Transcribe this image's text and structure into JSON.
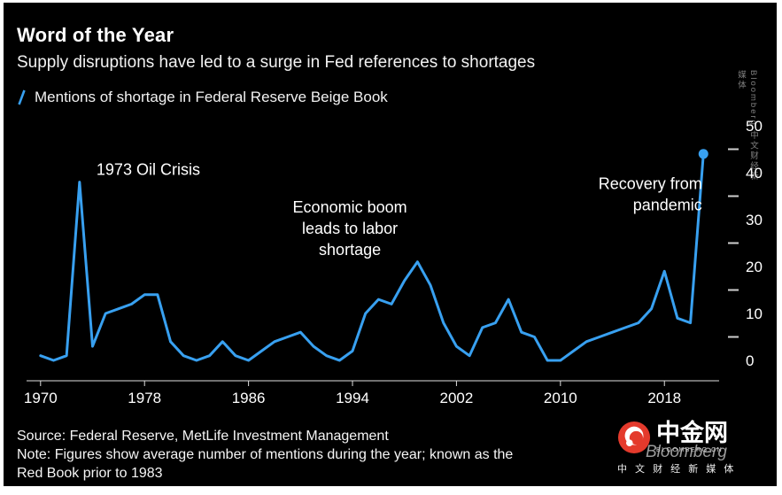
{
  "page": {
    "background": "#000000",
    "accent": "#38A0F0"
  },
  "header": {
    "title": "Word of the Year",
    "subtitle": "Supply disruptions have led to a surge in Fed references to shortages"
  },
  "legend": {
    "label": "Mentions of shortage in Federal Reserve Beige Book",
    "mark_color": "#38A0F0"
  },
  "chart_data": {
    "type": "line",
    "title": "Word of the Year",
    "line_color": "#38A0F0",
    "axis_side": "right",
    "grid": false,
    "legend_position": "top-left",
    "xlim": [
      1969.4,
      2021.8
    ],
    "ylim": [
      0,
      50
    ],
    "xticks": [
      1970,
      1978,
      1986,
      1994,
      2002,
      2010,
      2018
    ],
    "yticks": [
      0,
      10,
      20,
      30,
      40,
      50
    ],
    "yticks_minor": [
      5,
      15,
      25,
      35,
      45
    ],
    "endpoint_marker": true,
    "series": [
      {
        "name": "Mentions of shortage in Federal Reserve Beige Book",
        "x": [
          1970,
          1971,
          1972,
          1973,
          1974,
          1975,
          1976,
          1977,
          1978,
          1979,
          1980,
          1981,
          1982,
          1983,
          1984,
          1985,
          1986,
          1987,
          1988,
          1989,
          1990,
          1991,
          1992,
          1993,
          1994,
          1995,
          1996,
          1997,
          1998,
          1999,
          2000,
          2001,
          2002,
          2003,
          2004,
          2005,
          2006,
          2007,
          2008,
          2009,
          2010,
          2011,
          2012,
          2013,
          2014,
          2015,
          2016,
          2017,
          2018,
          2019,
          2020,
          2021
        ],
        "values": [
          1,
          0,
          1,
          38,
          3,
          10,
          11,
          12,
          14,
          14,
          4,
          1,
          0,
          1,
          4,
          1,
          0,
          2,
          4,
          5,
          6,
          3,
          1,
          0,
          2,
          10,
          13,
          12,
          17,
          21,
          16,
          8,
          3,
          1,
          7,
          8,
          13,
          6,
          5,
          0,
          0,
          2,
          4,
          5,
          6,
          7,
          8,
          11,
          19,
          9,
          8,
          44
        ]
      }
    ],
    "annotations": [
      {
        "lines": [
          "1973 Oil Crisis"
        ],
        "x": 1974.3,
        "y": 39.5,
        "align": "left"
      },
      {
        "lines": [
          "Economic boom",
          "leads to labor",
          "shortage"
        ],
        "x": 1993.8,
        "y": 31.5,
        "align": "center"
      },
      {
        "lines": [
          "Recovery from",
          "pandemic"
        ],
        "x": 2020.9,
        "y": 36.5,
        "align": "right"
      }
    ]
  },
  "footer": {
    "source": "Source: Federal Reserve, MetLife Investment Management",
    "note": "Note: Figures show average number of mentions during the year; known as the Red Book prior to 1983"
  },
  "watermark": {
    "brand": "中金网",
    "brand_sub": "BLOOMBERG.CN",
    "tagline": "中 文 财 经 新 媒 体",
    "bloomberg": "Bloomberg",
    "side": "Bloomberg 中文财经新媒体"
  }
}
